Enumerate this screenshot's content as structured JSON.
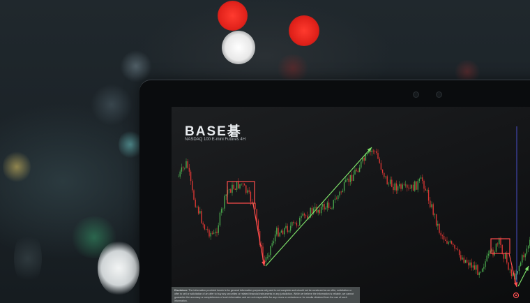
{
  "brand": {
    "logo_text": "BASE碁",
    "subtitle": "NASDAQ 100 E-mini Futures 4H"
  },
  "disclaimer": {
    "label": "Disclaimer:",
    "text": "The information provided herein is for general information purposes only and is not complete and should not be construed as an offer, solicitation or offer to sell or solicitation of an offer to buy any securities or related financial instruments in any jurisdiction. While we believe the information is reliable, we cannot guarantee the accuracy or completeness of such information and are not responsible for any errors or omissions or for results obtained from the use of such information."
  },
  "colors": {
    "up_candle": "#4caf50",
    "down_candle": "#e53935",
    "arrow_up": "#7ee06a",
    "arrow_down": "#ff5252",
    "highlight_box": "#ff4d4d",
    "cursor_line": "#4a4fc9"
  },
  "icons": {
    "marker": "target-marker-icon"
  }
}
